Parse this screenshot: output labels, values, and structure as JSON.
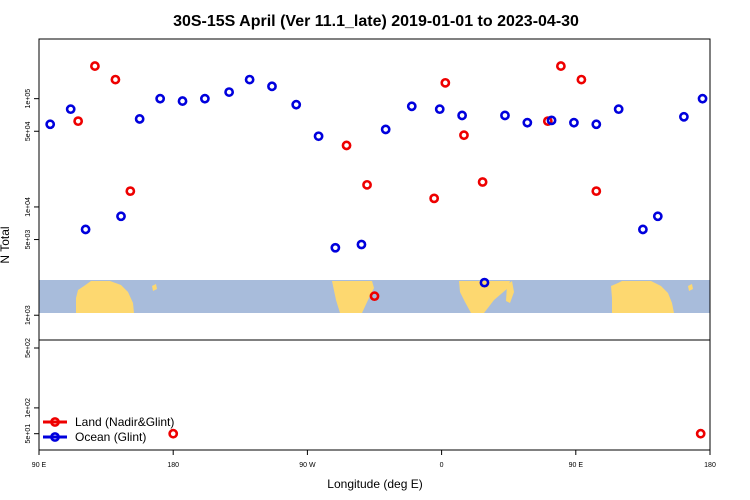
{
  "chart_data": {
    "type": "scatter",
    "title": "30S-15S April (Ver 11.1_late)   2019-01-01 to 2023-04-30",
    "xlabel": "Longitude (deg E)",
    "ylabel": "N Total",
    "x_ticks": [
      "90 E",
      "180",
      "90 W",
      "0",
      "90 E",
      "180"
    ],
    "y_ticks_upper": [
      "1e+05",
      "5e+04",
      "1e+04",
      "5e+03",
      "1e+03"
    ],
    "y_ticks_lower": [
      "5e+02",
      "1e+02",
      "5e+01"
    ],
    "y_scale": "log",
    "ylim_upper": [
      700,
      300000
    ],
    "ylim_lower": [
      40,
      500
    ],
    "xlim": [
      90,
      450
    ],
    "grid": false,
    "legend_position": "bottom-left",
    "map_strip": {
      "ocean_color": "#a8bcdb",
      "land_color": "#fdd870"
    },
    "series": [
      {
        "name": "Land (Nadir&Glint)",
        "color": "#ee0000",
        "points": [
          [
            111,
            62000
          ],
          [
            120,
            200000
          ],
          [
            131,
            150000
          ],
          [
            139,
            14000
          ],
          [
            162,
            50
          ],
          [
            255,
            37000
          ],
          [
            266,
            16000
          ],
          [
            270,
            1500
          ],
          [
            302,
            12000
          ],
          [
            308,
            140000
          ],
          [
            318,
            46000
          ],
          [
            328,
            17000
          ],
          [
            363,
            62000
          ],
          [
            370,
            200000
          ],
          [
            381,
            150000
          ],
          [
            389,
            14000
          ],
          [
            445,
            50
          ]
        ]
      },
      {
        "name": "Ocean (Glint)",
        "color": "#0000dd",
        "points": [
          [
            96,
            58000
          ],
          [
            107,
            80000
          ],
          [
            115,
            6200
          ],
          [
            134,
            8200
          ],
          [
            144,
            65000
          ],
          [
            155,
            100000
          ],
          [
            167,
            95000
          ],
          [
            179,
            100000
          ],
          [
            192,
            115000
          ],
          [
            203,
            150000
          ],
          [
            215,
            130000
          ],
          [
            228,
            88000
          ],
          [
            240,
            45000
          ],
          [
            249,
            4200
          ],
          [
            263,
            4500
          ],
          [
            276,
            52000
          ],
          [
            290,
            85000
          ],
          [
            305,
            80000
          ],
          [
            317,
            70000
          ],
          [
            329,
            2000
          ],
          [
            340,
            70000
          ],
          [
            352,
            60000
          ],
          [
            365,
            63000
          ],
          [
            377,
            60000
          ],
          [
            389,
            58000
          ],
          [
            401,
            80000
          ],
          [
            414,
            6200
          ],
          [
            422,
            8200
          ],
          [
            436,
            68000
          ],
          [
            446,
            100000
          ]
        ]
      }
    ]
  }
}
